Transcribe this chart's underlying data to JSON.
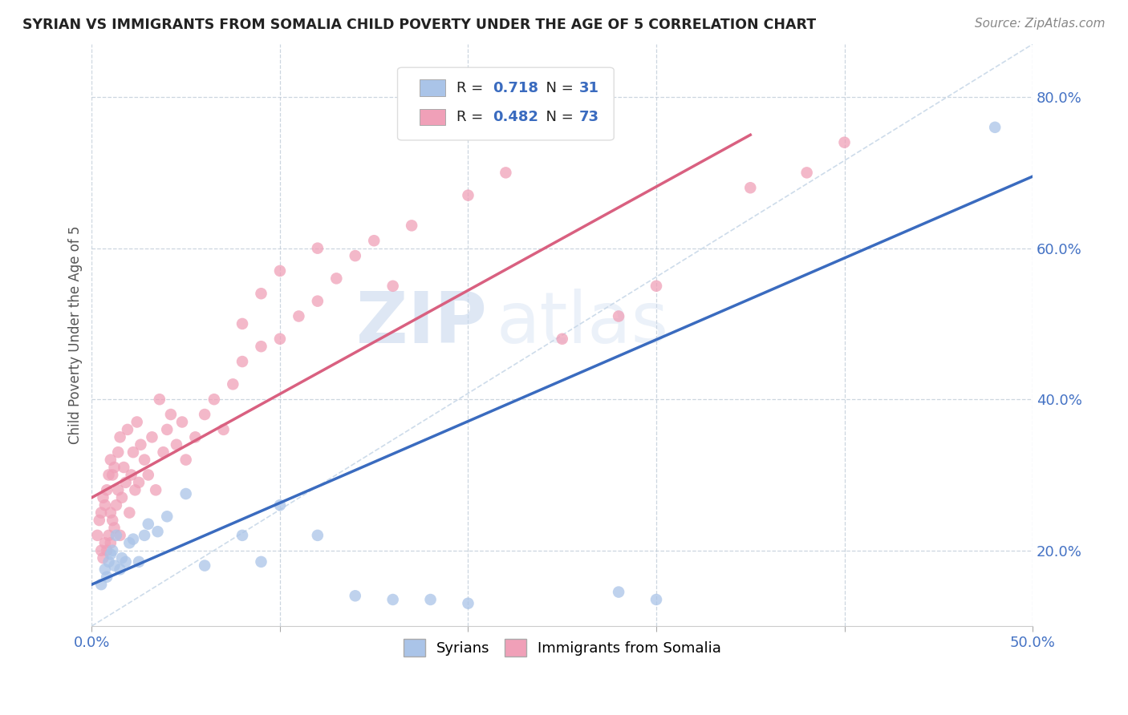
{
  "title": "SYRIAN VS IMMIGRANTS FROM SOMALIA CHILD POVERTY UNDER THE AGE OF 5 CORRELATION CHART",
  "source": "Source: ZipAtlas.com",
  "ylabel": "Child Poverty Under the Age of 5",
  "xlim": [
    0.0,
    0.5
  ],
  "ylim": [
    0.1,
    0.87
  ],
  "xticks": [
    0.0,
    0.1,
    0.2,
    0.3,
    0.4,
    0.5
  ],
  "xticklabels": [
    "0.0%",
    "",
    "",
    "",
    "",
    "50.0%"
  ],
  "yticks": [
    0.2,
    0.4,
    0.6,
    0.8
  ],
  "yticklabels": [
    "20.0%",
    "40.0%",
    "60.0%",
    "80.0%"
  ],
  "legend_blue_label": "Syrians",
  "legend_pink_label": "Immigrants from Somalia",
  "R_blue": 0.718,
  "N_blue": 31,
  "R_pink": 0.482,
  "N_pink": 73,
  "blue_color": "#aac4e8",
  "pink_color": "#f0a0b8",
  "blue_line_color": "#3a6bbf",
  "pink_line_color": "#d96080",
  "watermark_zip": "ZIP",
  "watermark_atlas": "atlas",
  "blue_line_x0": 0.0,
  "blue_line_y0": 0.155,
  "blue_line_x1": 0.5,
  "blue_line_y1": 0.695,
  "pink_line_x0": 0.0,
  "pink_line_y0": 0.27,
  "pink_line_x1": 0.35,
  "pink_line_y1": 0.75,
  "syrians_x": [
    0.005,
    0.007,
    0.008,
    0.009,
    0.01,
    0.011,
    0.012,
    0.013,
    0.015,
    0.016,
    0.018,
    0.02,
    0.022,
    0.025,
    0.028,
    0.03,
    0.035,
    0.04,
    0.05,
    0.06,
    0.08,
    0.09,
    0.1,
    0.12,
    0.14,
    0.16,
    0.18,
    0.2,
    0.28,
    0.3,
    0.48
  ],
  "syrians_y": [
    0.155,
    0.175,
    0.165,
    0.185,
    0.195,
    0.2,
    0.18,
    0.22,
    0.175,
    0.19,
    0.185,
    0.21,
    0.215,
    0.185,
    0.22,
    0.235,
    0.225,
    0.245,
    0.275,
    0.18,
    0.22,
    0.185,
    0.26,
    0.22,
    0.14,
    0.135,
    0.135,
    0.13,
    0.145,
    0.135,
    0.76
  ],
  "somalia_x": [
    0.003,
    0.004,
    0.005,
    0.005,
    0.006,
    0.006,
    0.007,
    0.007,
    0.008,
    0.008,
    0.009,
    0.009,
    0.01,
    0.01,
    0.01,
    0.011,
    0.011,
    0.012,
    0.012,
    0.013,
    0.014,
    0.014,
    0.015,
    0.015,
    0.016,
    0.017,
    0.018,
    0.019,
    0.02,
    0.021,
    0.022,
    0.023,
    0.024,
    0.025,
    0.026,
    0.028,
    0.03,
    0.032,
    0.034,
    0.036,
    0.038,
    0.04,
    0.042,
    0.045,
    0.048,
    0.05,
    0.055,
    0.06,
    0.065,
    0.07,
    0.075,
    0.08,
    0.09,
    0.1,
    0.11,
    0.12,
    0.13,
    0.14,
    0.08,
    0.09,
    0.1,
    0.12,
    0.15,
    0.16,
    0.17,
    0.2,
    0.22,
    0.25,
    0.28,
    0.3,
    0.35,
    0.38,
    0.4
  ],
  "somalia_y": [
    0.22,
    0.24,
    0.2,
    0.25,
    0.19,
    0.27,
    0.21,
    0.26,
    0.2,
    0.28,
    0.22,
    0.3,
    0.21,
    0.25,
    0.32,
    0.24,
    0.3,
    0.23,
    0.31,
    0.26,
    0.28,
    0.33,
    0.22,
    0.35,
    0.27,
    0.31,
    0.29,
    0.36,
    0.25,
    0.3,
    0.33,
    0.28,
    0.37,
    0.29,
    0.34,
    0.32,
    0.3,
    0.35,
    0.28,
    0.4,
    0.33,
    0.36,
    0.38,
    0.34,
    0.37,
    0.32,
    0.35,
    0.38,
    0.4,
    0.36,
    0.42,
    0.45,
    0.47,
    0.48,
    0.51,
    0.53,
    0.56,
    0.59,
    0.5,
    0.54,
    0.57,
    0.6,
    0.61,
    0.55,
    0.63,
    0.67,
    0.7,
    0.48,
    0.51,
    0.55,
    0.68,
    0.7,
    0.74
  ]
}
